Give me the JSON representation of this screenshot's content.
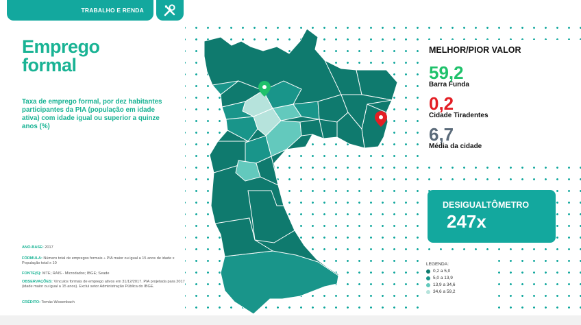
{
  "header": {
    "section": "TRABALHO E RENDA",
    "tool_icon": "tools-icon"
  },
  "title_line1": "Emprego",
  "title_line2": "formal",
  "subtitle": "Taxa de emprego formal, por dez habitantes participantes da PIA (população em idade ativa) com idade igual ou superior a quinze anos (%)",
  "meta": {
    "ano_base_label": "ANO-BASE:",
    "ano_base": "2017",
    "formula_label": "FÓRMULA:",
    "formula": "Número total de empregos formais ÷ PIA maior ou igual a 15 anos de idade x População total x 10",
    "fontes_label": "FONTE(S):",
    "fontes": "MTE; RAIS - Microdados; IBGE; Seade",
    "obs_label": "OBSERVAÇÕES:",
    "obs": "Vínculos formais de emprego ativos em 31/12/2017. PIA projetada para 2017 (idade maior ou igual a 15 anos). Exclui setor Administração Pública do IBGE.",
    "credito_label": "CRÉDITO:",
    "credito": "Tomás Wissenbach"
  },
  "stats": {
    "header": "MELHOR/PIOR VALOR",
    "best_value": "59,2",
    "best_label": "Barra Funda",
    "best_color": "#1fc16b",
    "worst_value": "0,2",
    "worst_label": "Cidade Tiradentes",
    "worst_color": "#e31e24",
    "avg_value": "6,7",
    "avg_label": "Média da cidade",
    "avg_color": "#5b6b7a"
  },
  "desigualtometro": {
    "label": "DESIGUALTÔMETRO",
    "value": "247x"
  },
  "legend": {
    "title": "LEGENDA:",
    "items": [
      {
        "label": "0,2 a 5,0",
        "color": "#0f7a6e"
      },
      {
        "label": "5,0 a 13,9",
        "color": "#19958a"
      },
      {
        "label": "13,9 a 34,6",
        "color": "#63c9bd"
      },
      {
        "label": "34,6 a 59,2",
        "color": "#b6e3dc"
      }
    ]
  }
}
